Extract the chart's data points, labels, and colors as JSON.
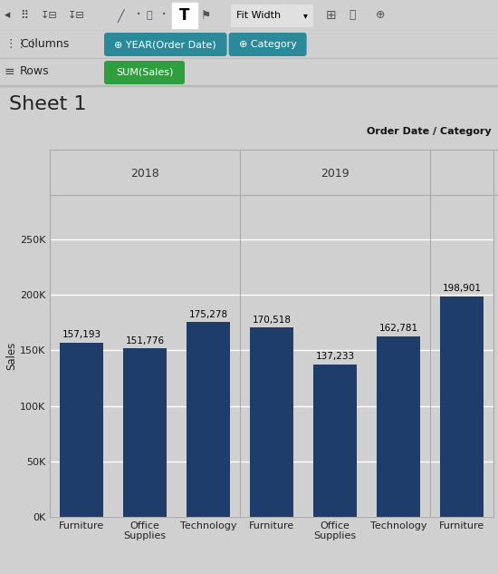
{
  "title": "Sheet 1",
  "bg_color": "#d0d0d0",
  "toolbar_bg": "#d0d0d0",
  "chart_bg": "#d0d0d0",
  "bar_color": "#1f3d6b",
  "bar_data": [
    157193,
    151776,
    175278,
    170518,
    137233,
    162781,
    198901
  ],
  "bar_labels": [
    "Furniture",
    "Office\nSupplies",
    "Technology",
    "Furniture",
    "Office\nSupplies",
    "Technology",
    "Furniture"
  ],
  "bar_label_values": [
    "157,193",
    "151,776",
    "175,278",
    "170,518",
    "137,233",
    "162,781",
    "198,901"
  ],
  "year_2018_label": "2018",
  "year_2019_label": "2019",
  "ylabel": "Sales",
  "yticks": [
    0,
    50000,
    100000,
    150000,
    200000,
    250000
  ],
  "ytick_labels": [
    "0K",
    "50K",
    "100K",
    "150K",
    "200K",
    "250K"
  ],
  "ylim": [
    0,
    290000
  ],
  "columns_pills": [
    "⊕ YEAR(Order Date)",
    "⊕ Category"
  ],
  "rows_pills": [
    "SUM(Sales)"
  ],
  "pill_color_teal": "#2a8a9a",
  "pill_color_green": "#2e9e3e",
  "header_label": "Order Date / Category",
  "fit_width_label": "Fit Width"
}
